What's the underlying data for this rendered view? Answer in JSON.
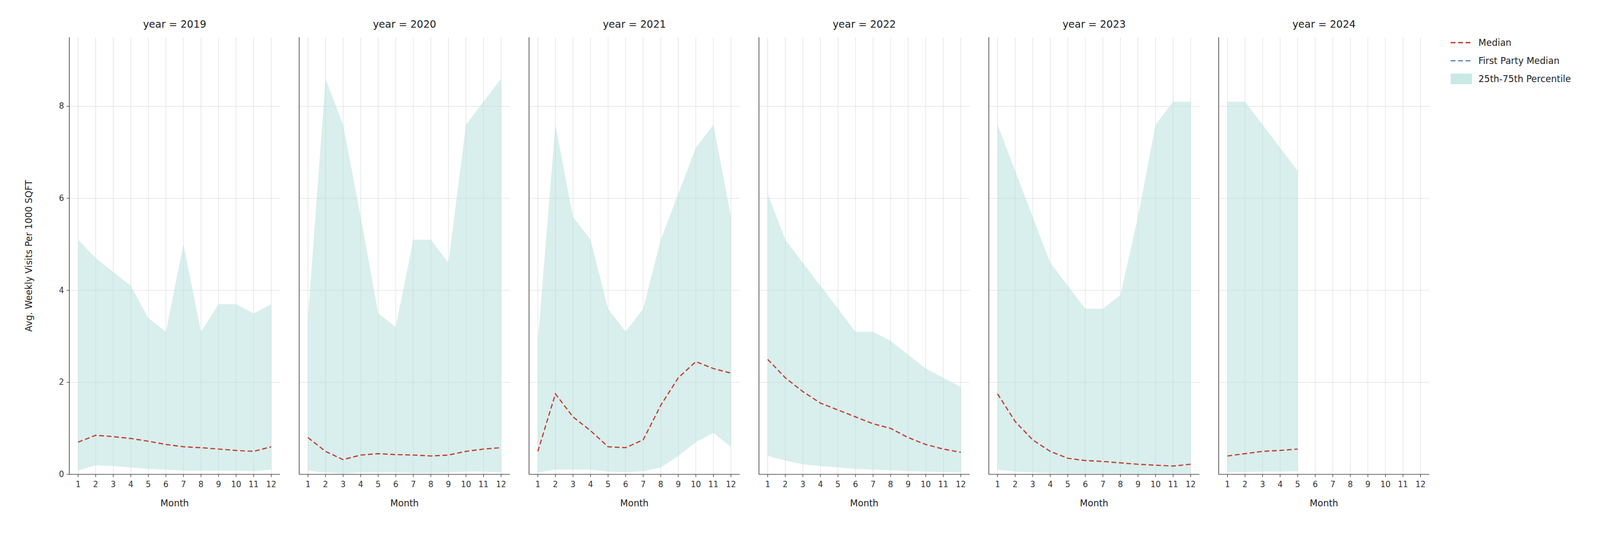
{
  "chart_data": [
    {
      "type": "line",
      "title": "year = 2019",
      "xlabel": "Month",
      "ylabel": "Avg. Weekly Visits Per 1000 SQFT",
      "x": [
        1,
        2,
        3,
        4,
        5,
        6,
        7,
        8,
        9,
        10,
        11,
        12
      ],
      "xlim": [
        0.5,
        12.5
      ],
      "xticks": [
        1,
        2,
        3,
        4,
        5,
        6,
        7,
        8,
        9,
        10,
        11,
        12
      ],
      "ylim": [
        0,
        9.5
      ],
      "yticks": [
        0,
        2,
        4,
        6,
        8
      ],
      "grid": true,
      "legend": "right",
      "series": [
        {
          "name": "Median",
          "color": "#c0392b",
          "line_style": "dashed",
          "values": [
            0.7,
            0.85,
            0.82,
            0.78,
            0.72,
            0.65,
            0.6,
            0.58,
            0.55,
            0.52,
            0.5,
            0.6
          ]
        },
        {
          "name": "First Party Median",
          "color": "#5b8db8",
          "line_style": "dashed",
          "values": [
            null,
            null,
            null,
            null,
            null,
            null,
            null,
            null,
            null,
            null,
            null,
            null
          ]
        },
        {
          "name": "25th-75th Percentile",
          "type": "area",
          "color": "#b2dfdb",
          "lower": [
            0.08,
            0.2,
            0.18,
            0.15,
            0.12,
            0.1,
            0.08,
            0.08,
            0.08,
            0.08,
            0.07,
            0.1
          ],
          "upper": [
            5.1,
            4.7,
            4.4,
            4.1,
            3.4,
            3.1,
            5.0,
            3.1,
            3.7,
            3.7,
            3.5,
            3.7
          ]
        }
      ]
    },
    {
      "type": "line",
      "title": "year = 2020",
      "xlabel": "Month",
      "x": [
        1,
        2,
        3,
        4,
        5,
        6,
        7,
        8,
        9,
        10,
        11,
        12
      ],
      "xlim": [
        0.5,
        12.5
      ],
      "xticks": [
        1,
        2,
        3,
        4,
        5,
        6,
        7,
        8,
        9,
        10,
        11,
        12
      ],
      "ylim": [
        0,
        9.5
      ],
      "yticks": [
        0,
        2,
        4,
        6,
        8
      ],
      "grid": true,
      "tick_labels": "x",
      "series": [
        {
          "color": "#c0392b",
          "line_style": "dashed",
          "values": [
            0.8,
            0.5,
            0.32,
            0.42,
            0.45,
            0.43,
            0.42,
            0.4,
            0.42,
            0.5,
            0.55,
            0.58
          ]
        },
        {
          "type": "area",
          "color": "#b2dfdb",
          "lower": [
            0.08,
            0.04,
            0.02,
            0.04,
            0.04,
            0.04,
            0.03,
            0.03,
            0.04,
            0.06,
            0.06,
            0.04
          ],
          "upper": [
            3.4,
            8.6,
            7.6,
            5.6,
            3.5,
            3.2,
            5.1,
            5.1,
            4.6,
            7.6,
            8.1,
            8.6
          ]
        }
      ]
    },
    {
      "type": "line",
      "title": "year = 2021",
      "xlabel": "Month",
      "x": [
        1,
        2,
        3,
        4,
        5,
        6,
        7,
        8,
        9,
        10,
        11,
        12
      ],
      "xlim": [
        0.5,
        12.5
      ],
      "xticks": [
        1,
        2,
        3,
        4,
        5,
        6,
        7,
        8,
        9,
        10,
        11,
        12
      ],
      "ylim": [
        0,
        9.5
      ],
      "yticks": [
        0,
        2,
        4,
        6,
        8
      ],
      "grid": true,
      "tick_labels": "x",
      "series": [
        {
          "color": "#c0392b",
          "line_style": "dashed",
          "values": [
            0.5,
            1.75,
            1.25,
            0.95,
            0.6,
            0.58,
            0.75,
            1.5,
            2.1,
            2.45,
            2.3,
            2.2
          ]
        },
        {
          "type": "area",
          "color": "#b2dfdb",
          "lower": [
            0.04,
            0.1,
            0.1,
            0.1,
            0.06,
            0.05,
            0.07,
            0.15,
            0.4,
            0.7,
            0.9,
            0.6
          ],
          "upper": [
            2.9,
            7.6,
            5.6,
            5.1,
            3.6,
            3.1,
            3.6,
            5.1,
            6.1,
            7.1,
            7.6,
            5.6
          ]
        }
      ]
    },
    {
      "type": "line",
      "title": "year = 2022",
      "xlabel": "Month",
      "x": [
        1,
        2,
        3,
        4,
        5,
        6,
        7,
        8,
        9,
        10,
        11,
        12
      ],
      "xlim": [
        0.5,
        12.5
      ],
      "xticks": [
        1,
        2,
        3,
        4,
        5,
        6,
        7,
        8,
        9,
        10,
        11,
        12
      ],
      "ylim": [
        0,
        9.5
      ],
      "yticks": [
        0,
        2,
        4,
        6,
        8
      ],
      "grid": true,
      "tick_labels": "x",
      "series": [
        {
          "color": "#c0392b",
          "line_style": "dashed",
          "values": [
            2.5,
            2.1,
            1.8,
            1.55,
            1.4,
            1.25,
            1.1,
            1.0,
            0.8,
            0.65,
            0.55,
            0.48
          ]
        },
        {
          "type": "area",
          "color": "#b2dfdb",
          "lower": [
            0.4,
            0.3,
            0.22,
            0.18,
            0.15,
            0.12,
            0.1,
            0.09,
            0.07,
            0.06,
            0.05,
            0.04
          ],
          "upper": [
            6.1,
            5.1,
            4.6,
            4.1,
            3.6,
            3.1,
            3.1,
            2.9,
            2.6,
            2.3,
            2.1,
            1.9
          ]
        }
      ]
    },
    {
      "type": "line",
      "title": "year = 2023",
      "xlabel": "Month",
      "x": [
        1,
        2,
        3,
        4,
        5,
        6,
        7,
        8,
        9,
        10,
        11,
        12
      ],
      "xlim": [
        0.5,
        12.5
      ],
      "xticks": [
        1,
        2,
        3,
        4,
        5,
        6,
        7,
        8,
        9,
        10,
        11,
        12
      ],
      "ylim": [
        0,
        9.5
      ],
      "yticks": [
        0,
        2,
        4,
        6,
        8
      ],
      "grid": true,
      "tick_labels": "x",
      "series": [
        {
          "color": "#c0392b",
          "line_style": "dashed",
          "values": [
            1.75,
            1.15,
            0.75,
            0.5,
            0.35,
            0.3,
            0.28,
            0.25,
            0.22,
            0.2,
            0.18,
            0.22
          ]
        },
        {
          "type": "area",
          "color": "#b2dfdb",
          "lower": [
            0.1,
            0.06,
            0.04,
            0.03,
            0.02,
            0.02,
            0.02,
            0.02,
            0.02,
            0.02,
            0.02,
            0.02
          ],
          "upper": [
            7.6,
            6.6,
            5.6,
            4.6,
            4.1,
            3.6,
            3.6,
            3.9,
            5.6,
            7.6,
            8.1,
            8.1
          ]
        }
      ]
    },
    {
      "type": "line",
      "title": "year = 2024",
      "xlabel": "Month",
      "x": [
        1,
        2,
        3,
        4,
        5,
        6,
        7,
        8,
        9,
        10,
        11,
        12
      ],
      "xlim": [
        0.5,
        12.5
      ],
      "xticks": [
        1,
        2,
        3,
        4,
        5,
        6,
        7,
        8,
        9,
        10,
        11,
        12
      ],
      "ylim": [
        0,
        9.5
      ],
      "yticks": [
        0,
        2,
        4,
        6,
        8
      ],
      "grid": true,
      "tick_labels": "x",
      "series": [
        {
          "color": "#c0392b",
          "line_style": "dashed",
          "values": [
            0.4,
            0.45,
            0.5,
            0.52,
            0.55,
            null,
            null,
            null,
            null,
            null,
            null,
            null
          ]
        },
        {
          "type": "area",
          "color": "#b2dfdb",
          "lower": [
            0.04,
            0.05,
            0.06,
            0.06,
            0.07,
            null,
            null,
            null,
            null,
            null,
            null,
            null
          ],
          "upper": [
            8.1,
            8.1,
            7.6,
            7.1,
            6.6,
            null,
            null,
            null,
            null,
            null,
            null,
            null
          ]
        }
      ]
    }
  ]
}
